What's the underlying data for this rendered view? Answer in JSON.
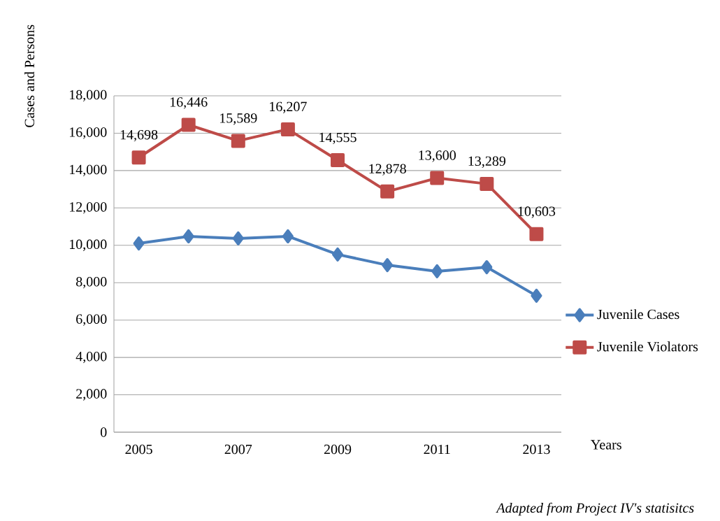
{
  "chart_data": {
    "type": "line",
    "ylabel": "Cases and Persons",
    "xlabel": "Years",
    "categories": [
      "2005",
      null,
      "2007",
      null,
      "2009",
      null,
      "2011",
      null,
      "2013"
    ],
    "series": [
      {
        "name": "Juvenile Cases",
        "color": "#4a7ebb",
        "marker": "diamond",
        "values": [
          10100,
          10480,
          10370,
          10480,
          9510,
          8940,
          8610,
          8830,
          7300
        ]
      },
      {
        "name": "Juvenile  Violators",
        "color": "#be4b48",
        "marker": "square",
        "values": [
          14698,
          16446,
          15589,
          16207,
          14555,
          12878,
          13600,
          13289,
          10603
        ],
        "value_labels": [
          "14,698",
          "16,446",
          "15,589",
          "16,207",
          "14,555",
          "12,878",
          "13,600",
          "13,289",
          "10,603"
        ]
      }
    ],
    "ylim": [
      0,
      18000
    ],
    "yticks": [
      {
        "value": 0,
        "label": "0"
      },
      {
        "value": 2000,
        "label": "2,000"
      },
      {
        "value": 4000,
        "label": "4,000"
      },
      {
        "value": 6000,
        "label": "6,000"
      },
      {
        "value": 8000,
        "label": "8,000"
      },
      {
        "value": 10000,
        "label": "10,000"
      },
      {
        "value": 12000,
        "label": "12,000"
      },
      {
        "value": 14000,
        "label": "14,000"
      },
      {
        "value": 16000,
        "label": "16,000"
      },
      {
        "value": 18000,
        "label": "18,000"
      }
    ],
    "grid": "y",
    "legend": "right",
    "line_style": "solid",
    "annotations": [
      "Adapted from Project IV's statisitcs"
    ]
  }
}
